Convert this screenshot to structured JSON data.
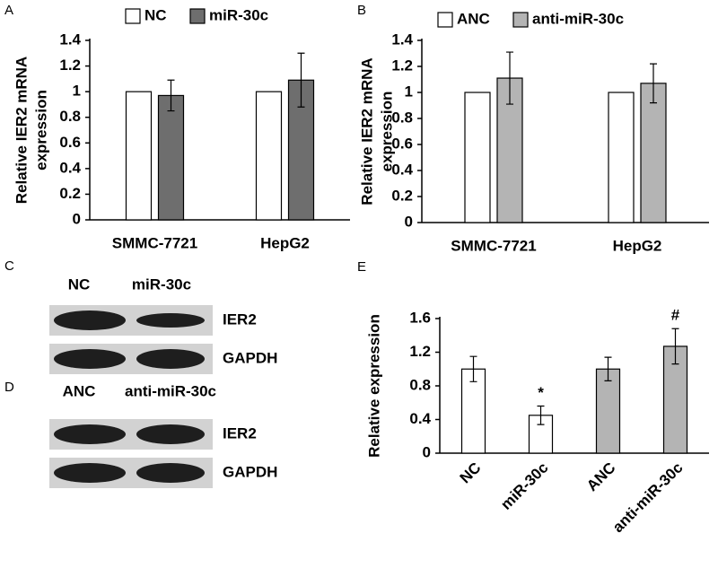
{
  "chart_data": [
    {
      "type": "bar",
      "panel_label": "A",
      "ylabel": [
        "Relative IER2 mRNA",
        "expression"
      ],
      "categories": [
        "SMMC-7721",
        "HepG2"
      ],
      "series": [
        {
          "name": "NC",
          "color": "#ffffff",
          "values": [
            1,
            1
          ]
        },
        {
          "name": "miR-30c",
          "color": "#6e6e6e",
          "values": [
            0.97,
            1.09
          ],
          "errors": [
            0.12,
            0.21
          ]
        }
      ],
      "ylim": [
        0,
        1.4
      ],
      "yticks": [
        0,
        0.2,
        0.4,
        0.6,
        0.8,
        1,
        1.2,
        1.4
      ]
    },
    {
      "type": "bar",
      "panel_label": "B",
      "ylabel": [
        "Relative IER2 mRNA",
        "expression"
      ],
      "categories": [
        "SMMC-7721",
        "HepG2"
      ],
      "series": [
        {
          "name": "ANC",
          "color": "#ffffff",
          "values": [
            1,
            1
          ]
        },
        {
          "name": "anti-miR-30c",
          "color": "#b4b4b4",
          "values": [
            1.11,
            1.07
          ],
          "errors": [
            0.2,
            0.15
          ]
        }
      ],
      "ylim": [
        0,
        1.4
      ],
      "yticks": [
        0,
        0.2,
        0.4,
        0.6,
        0.8,
        1,
        1.2,
        1.4
      ]
    },
    {
      "type": "bar",
      "panel_label": "E",
      "ylabel": [
        "Relative expression"
      ],
      "categories": [
        "NC",
        "miR-30c",
        "ANC",
        "anti-miR-30c"
      ],
      "series": [
        {
          "colors": [
            "#ffffff",
            "#ffffff",
            "#b4b4b4",
            "#b4b4b4"
          ],
          "values": [
            1,
            0.45,
            1,
            1.27
          ],
          "errors": [
            0.15,
            0.11,
            0.14,
            0.21
          ],
          "markers": [
            null,
            "*",
            null,
            "#"
          ]
        }
      ],
      "ylim": [
        0,
        1.6
      ],
      "yticks": [
        0,
        0.4,
        0.8,
        1.2,
        1.6
      ]
    }
  ],
  "blots": [
    {
      "panel_label": "C",
      "lanes": [
        "NC",
        "miR-30c"
      ],
      "rows": [
        "IER2",
        "GAPDH"
      ]
    },
    {
      "panel_label": "D",
      "lanes": [
        "ANC",
        "anti-miR-30c"
      ],
      "rows": [
        "IER2",
        "GAPDH"
      ]
    }
  ]
}
